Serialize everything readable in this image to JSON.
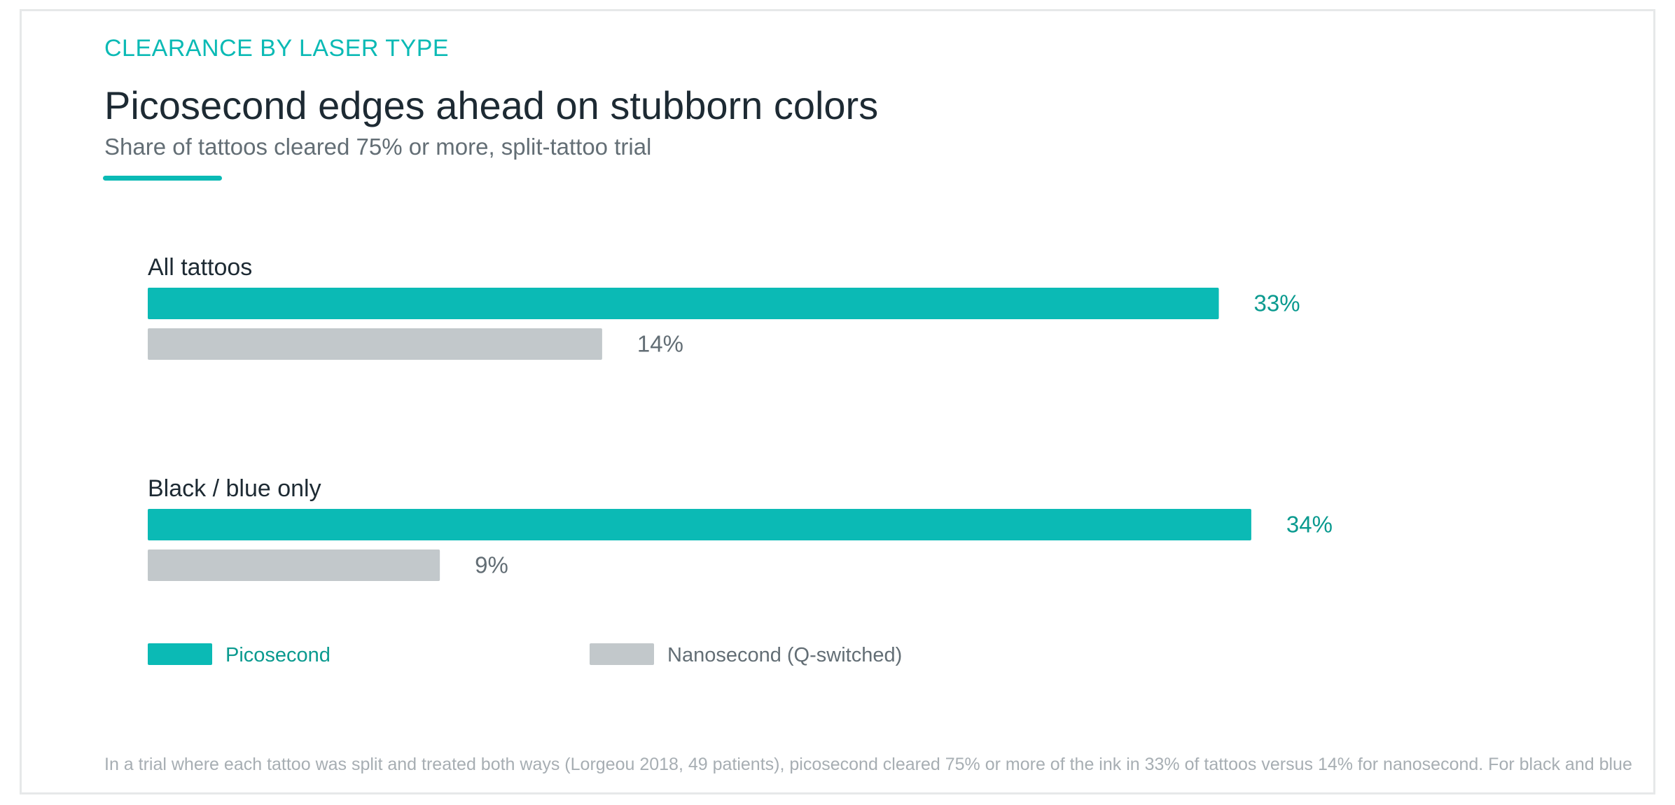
{
  "eyebrow": "CLEARANCE BY LASER TYPE",
  "title": "Picosecond edges ahead on stubborn colors",
  "subtitle": "Share of tattoos cleared 75% or more, split-tattoo trial",
  "footnote": "In a trial where each tattoo was split and treated both ways (Lorgeou 2018, 49 patients), picosecond cleared 75% or more of the ink in 33% of tattoos versus 14% for nanosecond. For black and blue",
  "colors": {
    "accent": "#0bbab5",
    "accent_text": "#0a9a8f",
    "nanosecond": "#c2c8cb",
    "nanosecond_text": "#636e75",
    "heading": "#1d2a33"
  },
  "chart_data": {
    "type": "bar",
    "orientation": "horizontal",
    "categories": [
      "All tattoos",
      "Black / blue only"
    ],
    "series": [
      {
        "name": "Picosecond",
        "values": [
          33,
          34
        ],
        "value_labels": [
          "33%",
          "34%"
        ],
        "color": "#0bbab5"
      },
      {
        "name": "Nanosecond (Q-switched)",
        "values": [
          14,
          9
        ],
        "value_labels": [
          "14%",
          "9%"
        ],
        "color": "#c2c8cb"
      }
    ],
    "unit": "%",
    "xlim": [
      0,
      36
    ],
    "grid": false,
    "legend_position": "bottom-left"
  }
}
